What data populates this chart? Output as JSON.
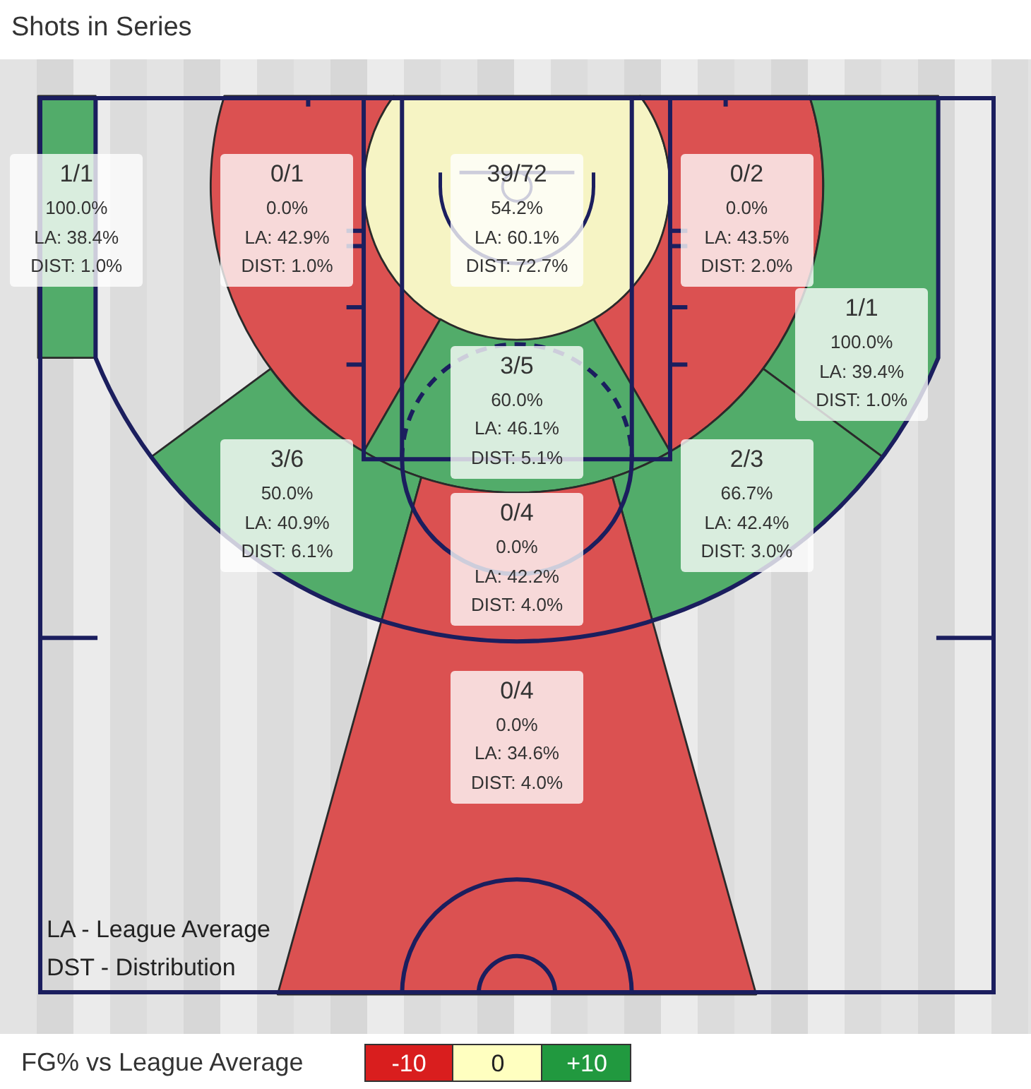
{
  "chart_data": {
    "type": "other",
    "title": "Shots in Series",
    "categories": [
      null,
      null,
      null,
      null,
      null,
      null,
      null,
      null,
      null,
      null
    ],
    "values": [
      100.0,
      0.0,
      54.2,
      0.0,
      100.0,
      60.0,
      50.0,
      66.7,
      0.0,
      0.0
    ],
    "value_labels": [
      "1/1\n100.0%\nLA: 38.4%\nDIST: 1.0%",
      "0/1\n0.0%\nLA: 42.9%\nDIST: 1.0%",
      "39/72\n54.2%\nLA: 60.1%\nDIST: 72.7%",
      "0/2\n0.0%\nLA: 43.5%\nDIST: 2.0%",
      "1/1\n100.0%\nLA: 39.4%\nDIST: 1.0%",
      "3/5\n60.0%\nLA: 46.1%\nDIST: 5.1%",
      "3/6\n50.0%\nLA: 40.9%\nDIST: 6.1%",
      "2/3\n66.7%\nLA: 42.4%\nDIST: 3.0%",
      "0/4\n0.0%\nLA: 42.2%\nDIST: 4.0%",
      "0/4\n0.0%\nLA: 34.6%\nDIST: 4.0%"
    ],
    "colors": [
      "#52ac6a",
      "#db5151",
      "#f6f4c4",
      "#db5151",
      "#52ac6a",
      "#52ac6a",
      "#52ac6a",
      "#52ac6a",
      "#db5151",
      "#db5151"
    ],
    "annotations": [
      "LA - League Average",
      "DST - Distribution",
      "FG% vs League Average",
      "-10",
      "0",
      "+10"
    ]
  }
}
